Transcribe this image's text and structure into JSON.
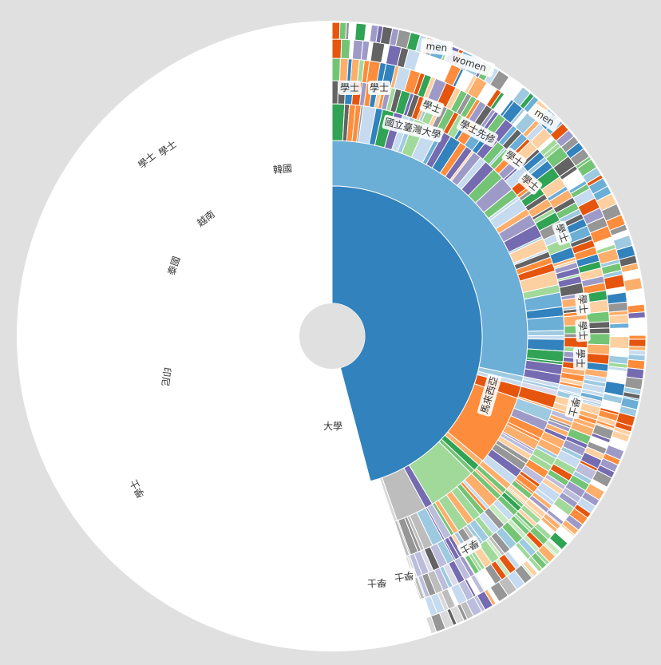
{
  "chart_data": {
    "type": "sunburst",
    "root": "大學",
    "labels": [
      {
        "text": "大學"
      },
      {
        "text": "馬來西亞"
      },
      {
        "text": "印尼"
      },
      {
        "text": "越南"
      },
      {
        "text": "泰國"
      },
      {
        "text": "韓國"
      },
      {
        "text": "國立臺灣大學"
      },
      {
        "text": "學士"
      },
      {
        "text": "學士"
      },
      {
        "text": "學士"
      },
      {
        "text": "學士先修"
      },
      {
        "text": "學士"
      },
      {
        "text": "學士"
      },
      {
        "text": "學士"
      },
      {
        "text": "學士"
      },
      {
        "text": "學士"
      },
      {
        "text": "學士"
      },
      {
        "text": "學士"
      },
      {
        "text": "學士"
      },
      {
        "text": "學士"
      },
      {
        "text": "學士"
      },
      {
        "text": "學士"
      },
      {
        "text": "學士"
      },
      {
        "text": "學士"
      },
      {
        "text": "men"
      },
      {
        "text": "women"
      },
      {
        "text": "men"
      }
    ],
    "ring2": [
      {
        "name": "馬來西亞",
        "share": 0.617,
        "color": "#6baed6"
      },
      {
        "name": "",
        "share": 0.01,
        "color": "#9ecae1"
      },
      {
        "name": "",
        "share": 0.008,
        "color": "#c6dbef"
      },
      {
        "name": "",
        "share": 0.022,
        "color": "#e6550d"
      },
      {
        "name": "印尼",
        "share": 0.128,
        "color": "#fd8d3c"
      },
      {
        "name": "",
        "share": 0.01,
        "color": "#fdae6b"
      },
      {
        "name": "泰國",
        "share": 0.012,
        "color": "#31a354"
      },
      {
        "name": "",
        "share": 0.008,
        "color": "#74c476"
      },
      {
        "name": "越南",
        "share": 0.088,
        "color": "#a1d99b"
      },
      {
        "name": "",
        "share": 0.014,
        "color": "#756bb1"
      },
      {
        "name": "韓國",
        "share": 0.055,
        "color": "#bdbdbd"
      },
      {
        "name": "",
        "share": 0.006,
        "color": "#d9d9d9"
      },
      {
        "name": "",
        "share": 0.022,
        "color": "#ffffff"
      }
    ],
    "palette": [
      "#3182bd",
      "#6baed6",
      "#9ecae1",
      "#c6dbef",
      "#e6550d",
      "#fd8d3c",
      "#fdae6b",
      "#fdd0a2",
      "#31a354",
      "#74c476",
      "#a1d99b",
      "#c7e9c0",
      "#756bb1",
      "#9e9ac8",
      "#bcbddc",
      "#dadaeb",
      "#636363",
      "#969696",
      "#bdbdbd",
      "#d9d9d9"
    ]
  }
}
